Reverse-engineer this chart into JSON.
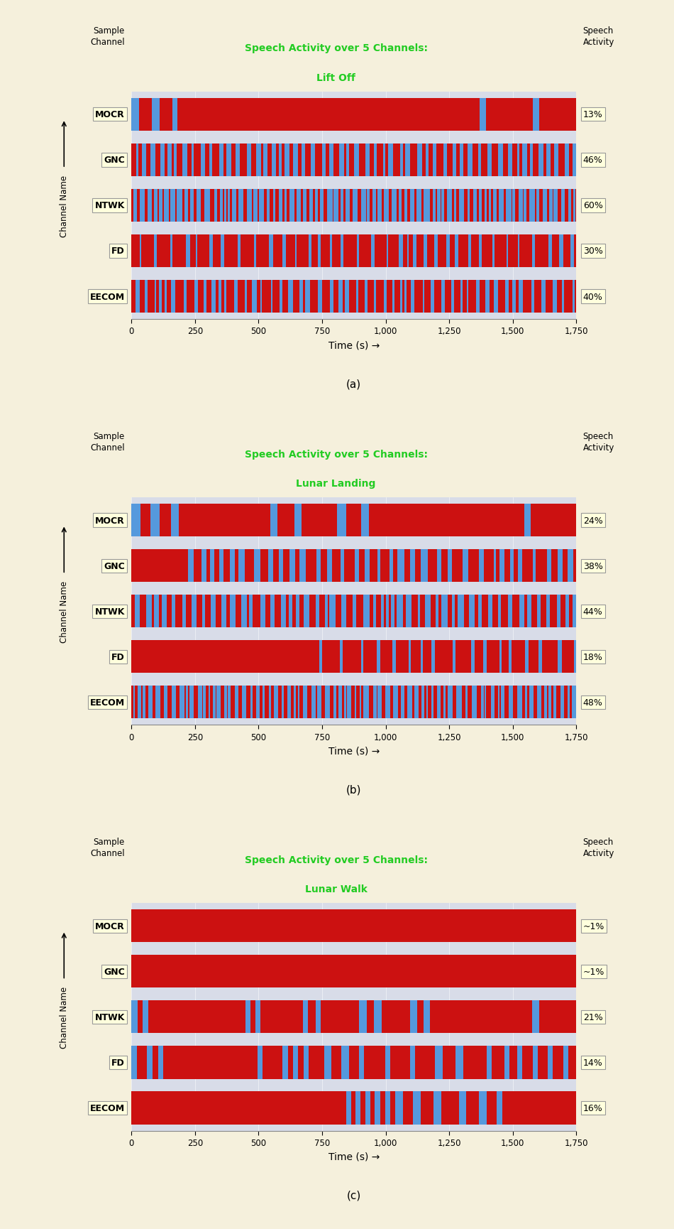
{
  "background_color": "#f5f0dc",
  "panel_bg_color": "#d8dce8",
  "label_box_color": "#ffffdd",
  "label_box_edge": "#aaaaaa",
  "bar_red": "#cc1111",
  "bar_blue": "#5599dd",
  "time_max": 1750,
  "channels": [
    "MOCR",
    "GNC",
    "NTWK",
    "FD",
    "EECOM"
  ],
  "panel_titles": [
    [
      "Speech Activity over 5 Channels:",
      "Lift Off"
    ],
    [
      "Speech Activity over 5 Channels:",
      "Lunar Landing"
    ],
    [
      "Speech Activity over 5 Channels:",
      "Lunar Walk"
    ]
  ],
  "panel_labels": [
    "(a)",
    "(b)",
    "(c)"
  ],
  "panel_activities": [
    [
      "13%",
      "46%",
      "60%",
      "30%",
      "40%"
    ],
    [
      "24%",
      "38%",
      "44%",
      "18%",
      "48%"
    ],
    [
      "~1%",
      "~1%",
      "21%",
      "14%",
      "16%"
    ]
  ],
  "xlabel": "Time (s) →",
  "xticks": [
    0,
    250,
    500,
    750,
    1000,
    1250,
    1500,
    1750
  ],
  "xtick_labels": [
    "0",
    "250",
    "500",
    "750",
    "1,000",
    "1,250",
    "1,500",
    "1,750"
  ],
  "title_color": "#22cc22"
}
